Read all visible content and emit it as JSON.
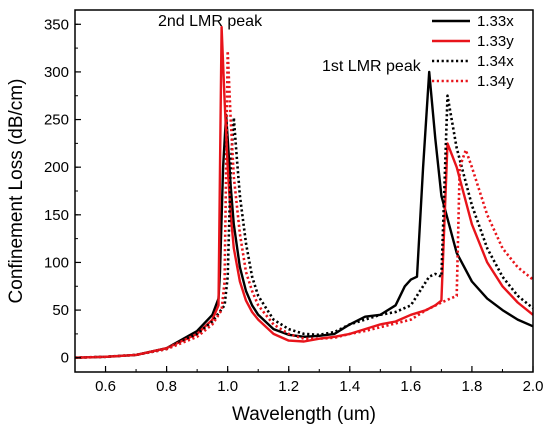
{
  "chart_data": {
    "type": "line",
    "xlabel": "Wavelength (um)",
    "ylabel": "Confinement Loss (dB/cm)",
    "xlim": [
      0.5,
      2.0
    ],
    "ylim": [
      -15,
      365
    ],
    "xticks": [
      0.6,
      0.8,
      1.0,
      1.2,
      1.4,
      1.6,
      1.8,
      2.0
    ],
    "xtick_labels": [
      "0.6",
      "0.8",
      "1.0",
      "1.2",
      "1.4",
      "1.6",
      "1.8",
      "2.0"
    ],
    "yticks": [
      0,
      50,
      100,
      150,
      200,
      250,
      300,
      350
    ],
    "ytick_labels": [
      "0",
      "50",
      "100",
      "150",
      "200",
      "250",
      "300",
      "350"
    ],
    "grid": false,
    "legend_position": "top-right",
    "annotations": [
      {
        "text": "2nd LMR peak",
        "x": 0.98,
        "y": 350
      },
      {
        "text": "1st LMR peak",
        "x": 1.66,
        "y": 300
      }
    ],
    "series": [
      {
        "name": "1.33x",
        "color": "#000000",
        "style": "solid",
        "x": [
          0.5,
          0.6,
          0.7,
          0.8,
          0.9,
          0.95,
          0.97,
          0.975,
          0.985,
          0.995,
          1.0,
          1.01,
          1.02,
          1.04,
          1.06,
          1.08,
          1.1,
          1.15,
          1.2,
          1.25,
          1.3,
          1.35,
          1.4,
          1.45,
          1.5,
          1.55,
          1.58,
          1.6,
          1.62,
          1.64,
          1.66,
          1.68,
          1.7,
          1.75,
          1.8,
          1.85,
          1.9,
          1.95,
          2.0
        ],
        "y": [
          0,
          1,
          3,
          10,
          28,
          45,
          62,
          90,
          200,
          255,
          230,
          180,
          140,
          95,
          70,
          55,
          45,
          30,
          24,
          22,
          23,
          25,
          35,
          43,
          45,
          55,
          75,
          82,
          85,
          200,
          300,
          230,
          170,
          110,
          80,
          62,
          50,
          40,
          33
        ]
      },
      {
        "name": "1.33y",
        "color": "#e8141b",
        "style": "solid",
        "x": [
          0.5,
          0.6,
          0.7,
          0.8,
          0.9,
          0.95,
          0.97,
          0.975,
          0.98,
          0.99,
          1.0,
          1.01,
          1.02,
          1.04,
          1.06,
          1.08,
          1.1,
          1.15,
          1.2,
          1.25,
          1.3,
          1.35,
          1.4,
          1.45,
          1.5,
          1.55,
          1.6,
          1.65,
          1.68,
          1.7,
          1.72,
          1.75,
          1.8,
          1.85,
          1.9,
          1.95,
          2.0
        ],
        "y": [
          0,
          1,
          3,
          10,
          25,
          40,
          55,
          200,
          347,
          270,
          200,
          150,
          115,
          80,
          60,
          48,
          40,
          25,
          18,
          17,
          20,
          22,
          25,
          30,
          35,
          38,
          45,
          50,
          55,
          60,
          225,
          200,
          140,
          100,
          75,
          58,
          45
        ]
      },
      {
        "name": "1.34x",
        "color": "#000000",
        "style": "dotted",
        "x": [
          0.5,
          0.6,
          0.7,
          0.8,
          0.9,
          0.95,
          0.99,
          1.0,
          1.01,
          1.02,
          1.03,
          1.04,
          1.06,
          1.08,
          1.1,
          1.15,
          1.2,
          1.25,
          1.3,
          1.35,
          1.4,
          1.45,
          1.5,
          1.55,
          1.6,
          1.63,
          1.66,
          1.68,
          1.7,
          1.72,
          1.75,
          1.8,
          1.85,
          1.9,
          1.95,
          2.0
        ],
        "y": [
          0,
          1,
          3,
          9,
          25,
          38,
          55,
          85,
          200,
          252,
          210,
          170,
          120,
          85,
          65,
          40,
          30,
          25,
          24,
          27,
          35,
          40,
          45,
          48,
          55,
          70,
          85,
          88,
          85,
          275,
          220,
          160,
          115,
          85,
          65,
          52
        ]
      },
      {
        "name": "1.34y",
        "color": "#e8141b",
        "style": "dotted",
        "x": [
          0.5,
          0.6,
          0.7,
          0.8,
          0.9,
          0.95,
          0.98,
          0.99,
          1.0,
          1.01,
          1.02,
          1.04,
          1.06,
          1.08,
          1.1,
          1.15,
          1.2,
          1.25,
          1.3,
          1.35,
          1.4,
          1.45,
          1.5,
          1.55,
          1.6,
          1.65,
          1.7,
          1.75,
          1.76,
          1.78,
          1.8,
          1.85,
          1.9,
          1.95,
          2.0
        ],
        "y": [
          0,
          1,
          3,
          9,
          22,
          35,
          50,
          80,
          322,
          250,
          190,
          130,
          90,
          70,
          55,
          35,
          25,
          20,
          20,
          21,
          25,
          28,
          32,
          36,
          40,
          50,
          58,
          65,
          200,
          218,
          200,
          150,
          115,
          95,
          82
        ]
      }
    ]
  }
}
